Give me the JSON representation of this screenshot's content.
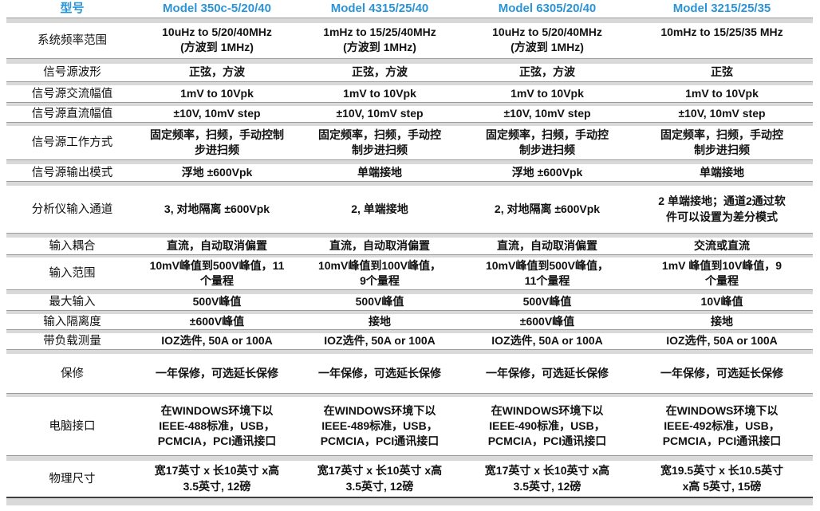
{
  "colors": {
    "header_blue": "#2B94D6",
    "separator_gray": "#D9D9D9",
    "text_black": "#111111"
  },
  "table": {
    "header": {
      "label": "型号",
      "models": [
        "Model 350c-5/20/40",
        "Model 4315/25/40",
        "Model 6305/20/40",
        "Model 3215/25/35"
      ]
    },
    "rows": [
      {
        "label": "系统频率范围",
        "values": [
          "10uHz to 5/20/40MHz\n(方波到 1MHz)",
          "1mHz to 15/25/40MHz\n(方波到 1MHz)",
          "10uHz to 5/20/40MHz\n(方波到 1MHz)",
          "10mHz to 15/25/35 MHz"
        ]
      },
      {
        "label": "信号源波形",
        "values": [
          "正弦，方波",
          "正弦，方波",
          "正弦，方波",
          "正弦"
        ]
      },
      {
        "label": "信号源交流幅值",
        "values": [
          "1mV to 10Vpk",
          "1mV to 10Vpk",
          "1mV to 10Vpk",
          "1mV to 10Vpk"
        ]
      },
      {
        "label": "信号源直流幅值",
        "values": [
          "±10V, 10mV step",
          "±10V, 10mV step",
          "±10V, 10mV step",
          "±10V, 10mV step"
        ]
      },
      {
        "label": "信号源工作方式",
        "values": [
          "固定频率，扫频，手动控制\n步进扫频",
          "固定频率，扫频，手动控\n制步进扫频",
          "固定频率，扫频，手动控\n制步进扫频",
          "固定频率，扫频，手动控\n制步进扫频"
        ]
      },
      {
        "label": "信号源输出模式",
        "values": [
          "浮地 ±600Vpk",
          "单端接地",
          "浮地 ±600Vpk",
          "单端接地"
        ]
      },
      {
        "label": "分析仪输入通道",
        "values": [
          "3, 对地隔离 ±600Vpk",
          "2, 单端接地",
          "2, 对地隔离 ±600Vpk",
          "2 单端接地；通道2通过软\n件可以设置为差分模式"
        ]
      },
      {
        "label": "输入耦合",
        "values": [
          "直流，自动取消偏置",
          "直流，自动取消偏置",
          "直流，自动取消偏置",
          "交流或直流"
        ]
      },
      {
        "label": "输入范围",
        "values": [
          "10mV峰值到500V峰值，11\n个量程",
          "10mV峰值到100V峰值，\n9个量程",
          "10mV峰值到500V峰值，\n11个量程",
          "1mV 峰值到10V峰值，9\n个量程"
        ]
      },
      {
        "label": "最大输入",
        "values": [
          "500V峰值",
          "500V峰值",
          "500V峰值",
          "10V峰值"
        ]
      },
      {
        "label": "输入隔离度",
        "values": [
          "±600V峰值",
          "接地",
          "±600V峰值",
          "接地"
        ]
      },
      {
        "label": "带负载测量",
        "values": [
          "IOZ选件, 50A or 100A",
          "IOZ选件, 50A or 100A",
          "IOZ选件, 50A or 100A",
          "IOZ选件, 50A or 100A"
        ]
      },
      {
        "label": "保修",
        "values": [
          "一年保修，可选延长保修",
          "一年保修，可选延长保修",
          "一年保修，可选延长保修",
          "一年保修，可选延长保修"
        ]
      },
      {
        "label": "电脑接口",
        "values": [
          "在WINDOWS环境下以\nIEEE-488标准，USB，\nPCMCIA，PCI通讯接口",
          "在WINDOWS环境下以\nIEEE-489标准，USB，\nPCMCIA，PCI通讯接口",
          "在WINDOWS环境下以\nIEEE-490标准，USB，\nPCMCIA，PCI通讯接口",
          "在WINDOWS环境下以\nIEEE-492标准，USB，\nPCMCIA，PCI通讯接口"
        ]
      },
      {
        "label": "物理尺寸",
        "values": [
          "宽17英寸 x 长10英寸 x高\n3.5英寸, 12磅",
          "宽17英寸 x 长10英寸 x高\n3.5英寸, 12磅",
          "宽17英寸 x 长10英寸 x高\n3.5英寸, 12磅",
          "宽19.5英寸 x 长10.5英寸\nx高 5英寸, 15磅"
        ]
      }
    ]
  }
}
